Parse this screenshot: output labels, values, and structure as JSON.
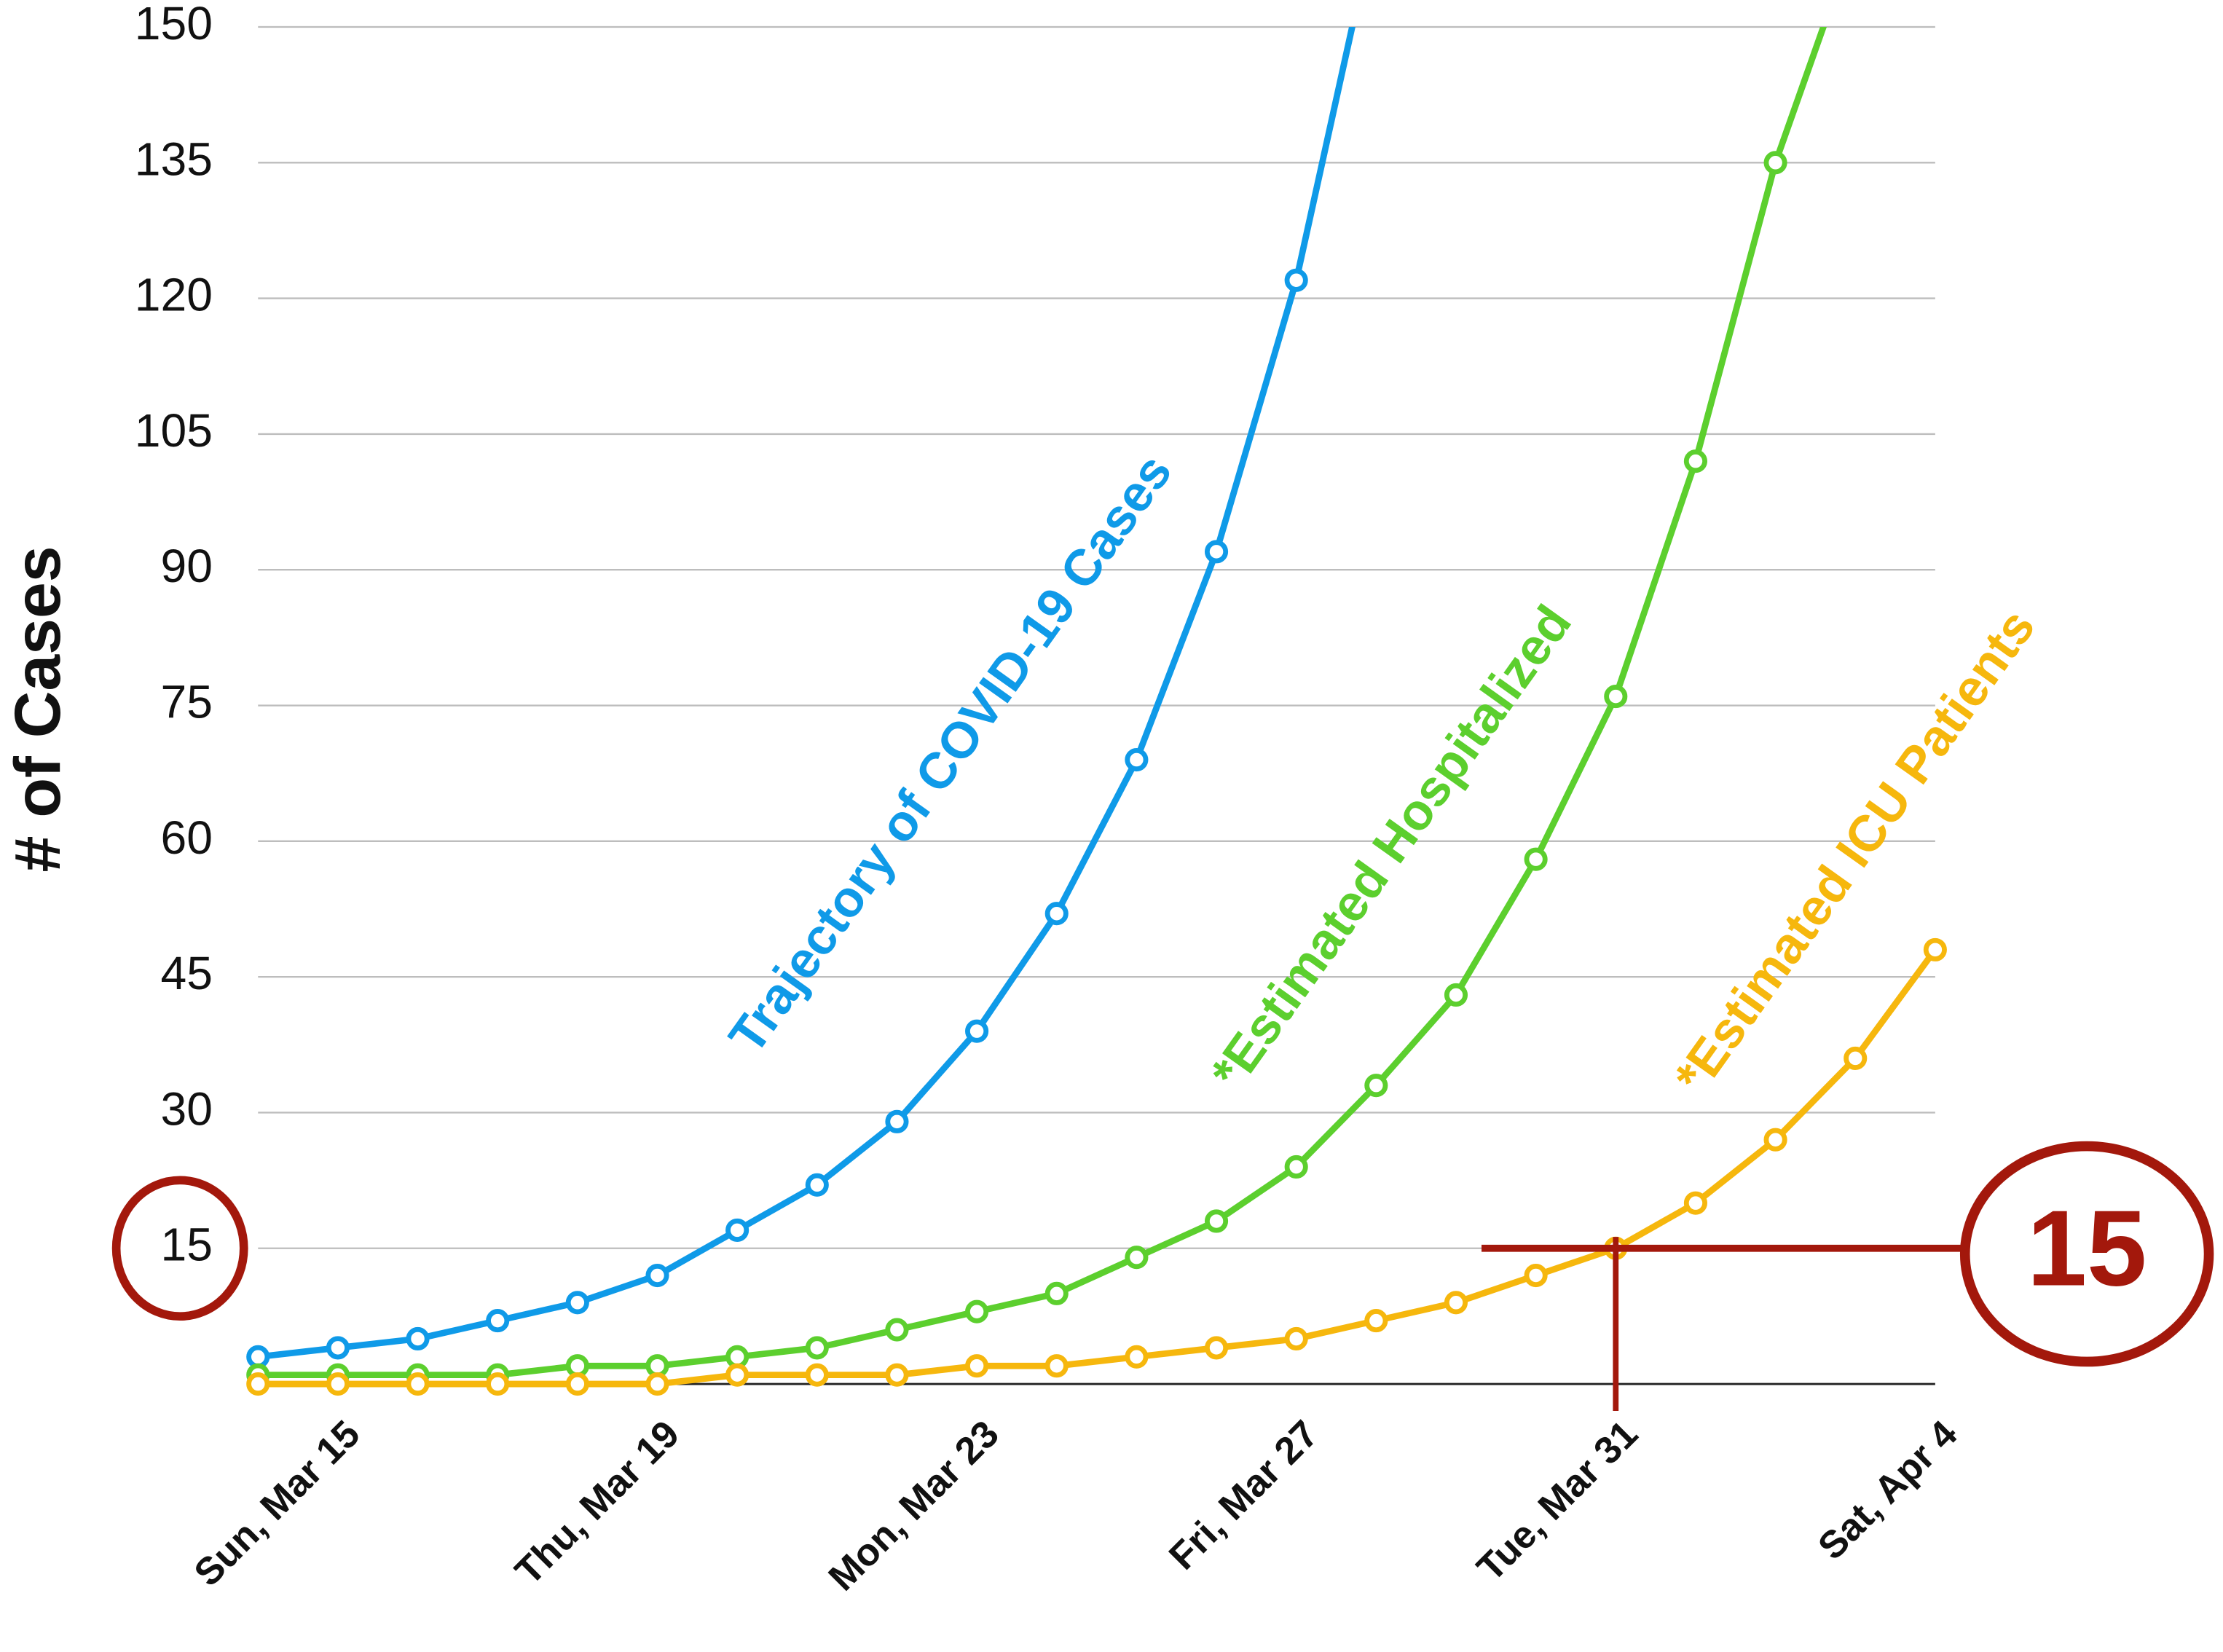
{
  "chart_data": {
    "type": "line",
    "y_label": "# of Cases",
    "categories": [
      null,
      "Sun, Mar 15",
      null,
      null,
      null,
      "Thu, Mar 19",
      null,
      null,
      null,
      "Mon, Mar 23",
      null,
      null,
      null,
      "Fri, Mar 27",
      null,
      null,
      null,
      "Tue, Mar 31",
      null,
      null,
      null,
      "Sat, Apr 4"
    ],
    "series": [
      {
        "name": "Trajectory of COVID-19 Cases",
        "color": "#0f9ae8",
        "values": [
          3,
          4,
          5,
          7,
          9,
          12,
          17,
          22,
          29,
          39,
          52,
          69,
          92,
          122,
          162,
          null,
          null,
          null,
          null,
          null,
          null,
          null
        ]
      },
      {
        "name": "*Estimated Hospitalized",
        "color": "#5ccf2e",
        "values": [
          1,
          1,
          1,
          1,
          2,
          2,
          3,
          4,
          6,
          8,
          10,
          14,
          18,
          24,
          33,
          43,
          58,
          76,
          102,
          135,
          160,
          null
        ]
      },
      {
        "name": "*Estimated ICU Patients",
        "color": "#f6b70d",
        "values": [
          0,
          0,
          0,
          0,
          0,
          0,
          1,
          1,
          1,
          2,
          2,
          3,
          4,
          5,
          7,
          9,
          12,
          15,
          20,
          27,
          36,
          48
        ]
      }
    ],
    "ylim": [
      0,
      150
    ],
    "yticks": [
      15,
      30,
      45,
      60,
      75,
      90,
      105,
      120,
      135,
      150
    ],
    "grid": true,
    "highlight_value": 15,
    "highlight_color": "#a3180c"
  }
}
